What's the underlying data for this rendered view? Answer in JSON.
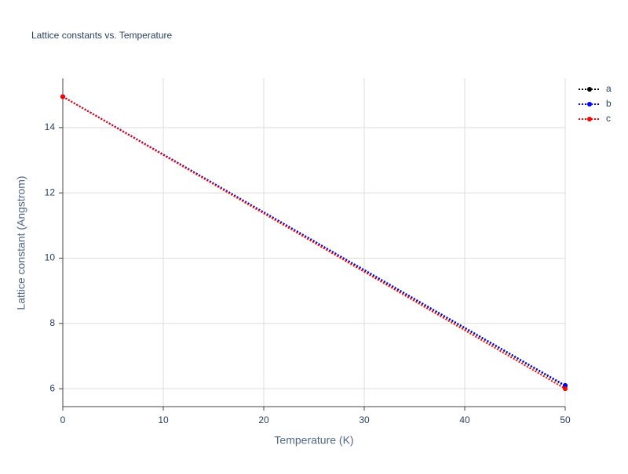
{
  "chart_data": {
    "type": "line",
    "title": "Lattice constants vs. Temperature",
    "x_label": "Temperature (K)",
    "y_label": "Lattice constant (Angstrom)",
    "x": [
      0,
      50
    ],
    "series": [
      {
        "name": "a",
        "color": "#000000",
        "values": [
          14.95,
          6.08
        ]
      },
      {
        "name": "b",
        "color": "#0000ff",
        "values": [
          14.95,
          6.1
        ]
      },
      {
        "name": "c",
        "color": "#ff0000",
        "values": [
          14.95,
          6.0
        ]
      }
    ],
    "xlim": [
      0,
      50
    ],
    "xticks": [
      0,
      10,
      20,
      30,
      40,
      50
    ],
    "ylim": [
      5.45,
      15.51
    ],
    "yticks": [
      6,
      8,
      10,
      12,
      14
    ],
    "grid": true,
    "legend": "right"
  }
}
